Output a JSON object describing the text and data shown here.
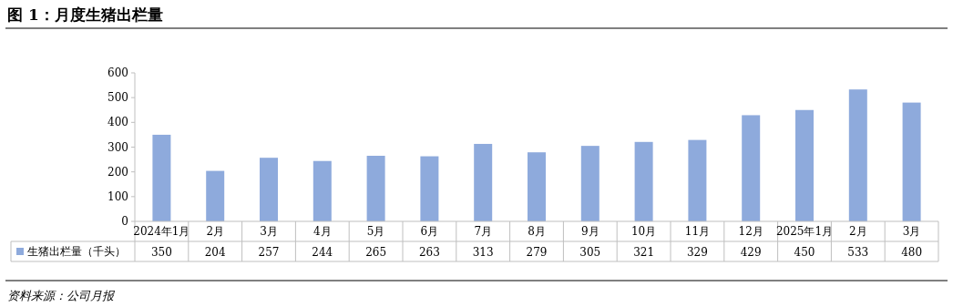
{
  "chart_data": {
    "type": "bar",
    "title": "图 1：月度生猪出栏量",
    "categories": [
      "2024年1月",
      "2月",
      "3月",
      "4月",
      "5月",
      "6月",
      "7月",
      "8月",
      "9月",
      "10月",
      "11月",
      "12月",
      "2025年1月",
      "2月",
      "3月"
    ],
    "series": [
      {
        "name": "生猪出栏量（千头）",
        "color": "#8eaadc",
        "values": [
          350,
          204,
          257,
          244,
          265,
          263,
          313,
          279,
          305,
          321,
          329,
          429,
          450,
          533,
          480
        ]
      }
    ],
    "ylim": [
      0,
      600
    ],
    "yticks": [
      0,
      100,
      200,
      300,
      400,
      500,
      600
    ],
    "data_labels": true,
    "legend": "bottom",
    "annotations": [
      "资料来源：公司月报"
    ]
  }
}
